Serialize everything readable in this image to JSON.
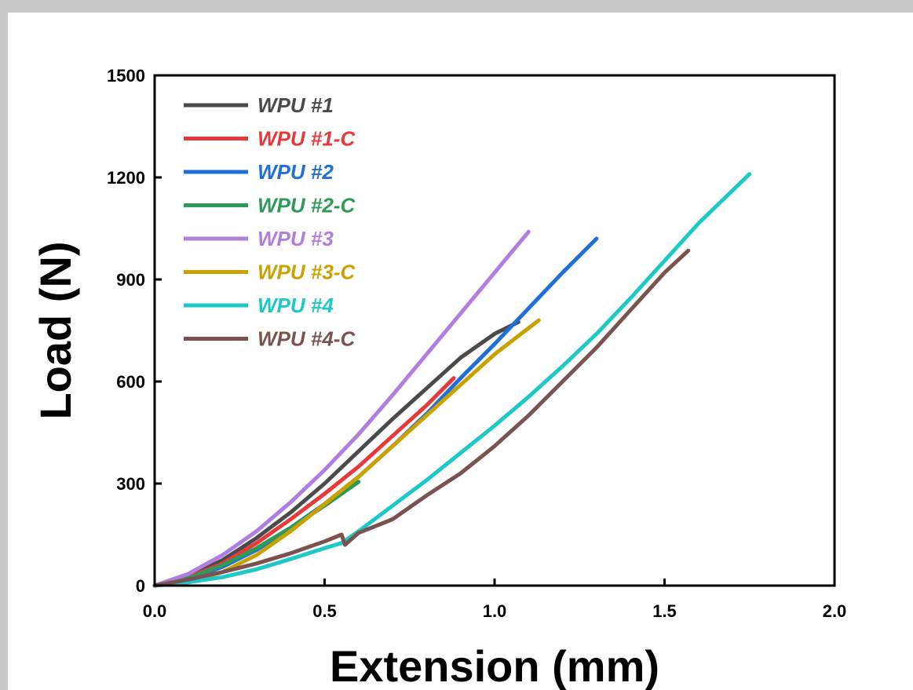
{
  "chart_data": {
    "type": "line",
    "title": "",
    "xlabel": "Extension (mm)",
    "ylabel": "Load (N)",
    "xlim": [
      0,
      2
    ],
    "ylim": [
      0,
      1500
    ],
    "xticks": [
      "0.0",
      "0.5",
      "1.0",
      "1.5",
      "2.0"
    ],
    "yticks": [
      "0",
      "300",
      "600",
      "900",
      "1200",
      "1500"
    ],
    "xtick_values": [
      0,
      0.5,
      1.0,
      1.5,
      2.0
    ],
    "ytick_values": [
      0,
      300,
      600,
      900,
      1200,
      1500
    ],
    "grid": false,
    "legend_position": "top-left",
    "series": [
      {
        "name": "WPU #1",
        "color": "#4a4a4a",
        "x": [
          0,
          0.1,
          0.2,
          0.3,
          0.4,
          0.5,
          0.6,
          0.7,
          0.8,
          0.9,
          1.0,
          1.07
        ],
        "y": [
          0,
          28,
          75,
          140,
          215,
          300,
          395,
          490,
          580,
          670,
          740,
          775
        ]
      },
      {
        "name": "WPU #1-C",
        "color": "#e8393a",
        "x": [
          0,
          0.1,
          0.2,
          0.3,
          0.4,
          0.5,
          0.6,
          0.7,
          0.8,
          0.88
        ],
        "y": [
          0,
          25,
          65,
          125,
          195,
          270,
          350,
          440,
          530,
          610
        ]
      },
      {
        "name": "WPU #2",
        "color": "#1f6fd8",
        "x": [
          0,
          0.1,
          0.2,
          0.3,
          0.4,
          0.5,
          0.6,
          0.7,
          0.8,
          0.9,
          1.0,
          1.1,
          1.2,
          1.3
        ],
        "y": [
          0,
          20,
          55,
          105,
          170,
          240,
          320,
          410,
          505,
          610,
          710,
          815,
          920,
          1020
        ]
      },
      {
        "name": "WPU #2-C",
        "color": "#2e9a5a",
        "x": [
          0,
          0.1,
          0.2,
          0.3,
          0.4,
          0.5,
          0.6
        ],
        "y": [
          0,
          22,
          60,
          110,
          170,
          235,
          305
        ]
      },
      {
        "name": "WPU #3",
        "color": "#b07de0",
        "x": [
          0,
          0.1,
          0.2,
          0.3,
          0.4,
          0.5,
          0.6,
          0.7,
          0.8,
          0.9,
          1.0,
          1.1
        ],
        "y": [
          0,
          35,
          90,
          160,
          245,
          340,
          445,
          560,
          680,
          800,
          920,
          1040
        ]
      },
      {
        "name": "WPU #3-C",
        "color": "#c9a100",
        "x": [
          0,
          0.1,
          0.2,
          0.3,
          0.4,
          0.5,
          0.6,
          0.7,
          0.8,
          0.9,
          1.0,
          1.13
        ],
        "y": [
          0,
          12,
          40,
          90,
          160,
          240,
          320,
          410,
          500,
          590,
          680,
          780
        ]
      },
      {
        "name": "WPU #4",
        "color": "#1ec8c8",
        "x": [
          0,
          0.1,
          0.2,
          0.3,
          0.4,
          0.5,
          0.55,
          0.6,
          0.7,
          0.8,
          0.9,
          1.0,
          1.1,
          1.2,
          1.3,
          1.4,
          1.5,
          1.6,
          1.75
        ],
        "y": [
          0,
          10,
          25,
          48,
          78,
          110,
          125,
          160,
          235,
          310,
          390,
          470,
          555,
          645,
          740,
          845,
          955,
          1065,
          1210
        ]
      },
      {
        "name": "WPU #4-C",
        "color": "#7a5350",
        "x": [
          0,
          0.1,
          0.2,
          0.3,
          0.4,
          0.5,
          0.55,
          0.56,
          0.6,
          0.7,
          0.8,
          0.9,
          1.0,
          1.1,
          1.2,
          1.3,
          1.4,
          1.5,
          1.57
        ],
        "y": [
          0,
          18,
          40,
          65,
          95,
          130,
          150,
          120,
          155,
          195,
          265,
          330,
          410,
          500,
          600,
          700,
          810,
          920,
          985
        ]
      }
    ]
  }
}
